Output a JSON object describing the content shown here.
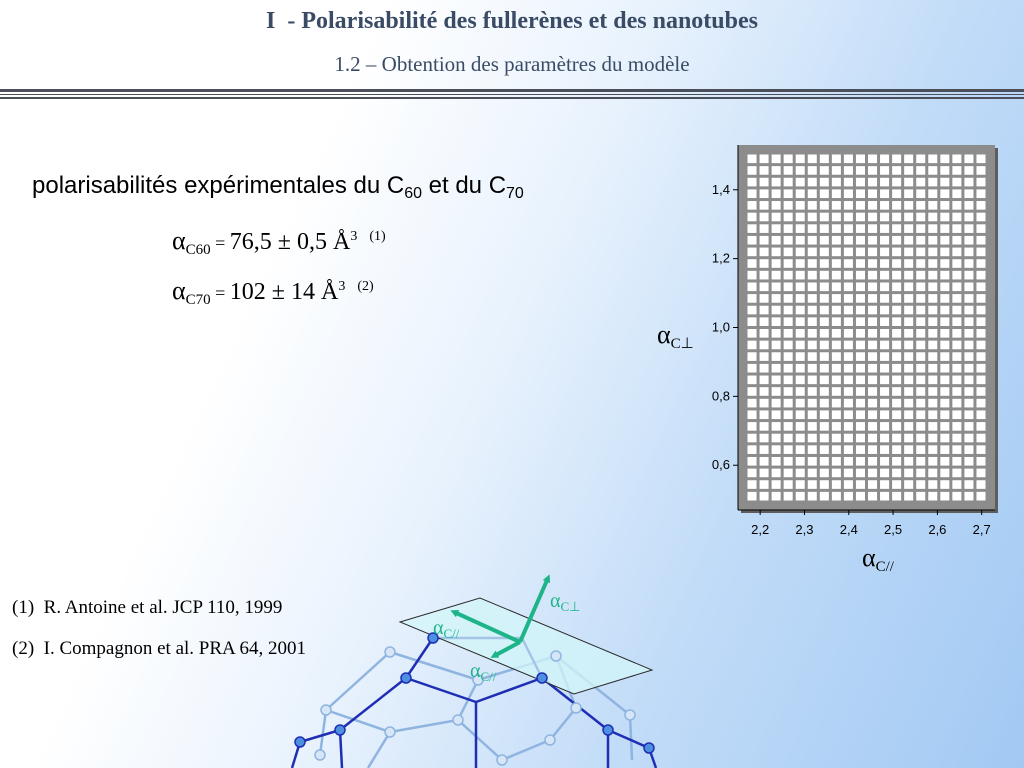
{
  "header": {
    "title": "I  - Polarisabilité des fullerènes et des nanotubes",
    "subtitle": "1.2 – Obtention des paramètres du modèle"
  },
  "content": {
    "heading_text": "polarisabilités expérimentales du C",
    "heading_sub1": "60",
    "heading_mid": " et du C",
    "heading_sub2": "70",
    "equations": [
      {
        "symbol": "α",
        "subscript": "C60",
        "eq": " = ",
        "value": "76,5 ± 0,5 Å",
        "unit_exp": "3",
        "ref": "(1)"
      },
      {
        "symbol": "α",
        "subscript": "C70",
        "eq": "  = ",
        "value": "102 ± 14 Å",
        "unit_exp": "3",
        "ref": "(2)"
      }
    ]
  },
  "references": [
    "(1)  R. Antoine et al. JCP 110, 1999",
    "(2)  I. Compagnon et al. PRA 64, 2001"
  ],
  "colors": {
    "title": "#3a4b66",
    "vector": "#1db48a",
    "plane_fill": "#d2f5f8",
    "grid_bg": "#8c8c8c"
  },
  "chart_data": {
    "type": "heatmap",
    "x_ticks": [
      "2,2",
      "2,3",
      "2,4",
      "2,5",
      "2,6",
      "2,7"
    ],
    "x_tick_values": [
      2.2,
      2.3,
      2.4,
      2.5,
      2.6,
      2.7
    ],
    "y_ticks": [
      "0,6",
      "0,8",
      "1,0",
      "1,2",
      "1,4"
    ],
    "y_tick_values": [
      0.6,
      0.8,
      1.0,
      1.2,
      1.4
    ],
    "xlim": [
      2.15,
      2.73
    ],
    "ylim": [
      0.47,
      1.53
    ],
    "grid_columns": 20,
    "grid_rows": 30,
    "x_axis_symbol": "α",
    "x_axis_sub": "C//",
    "y_axis_symbol": "α",
    "y_axis_sub": "C⊥"
  },
  "illustration": {
    "labels": [
      {
        "symbol": "α",
        "sub": "C⊥"
      },
      {
        "symbol": "α",
        "sub": "C//"
      },
      {
        "symbol": "α",
        "sub": "C//"
      }
    ]
  }
}
